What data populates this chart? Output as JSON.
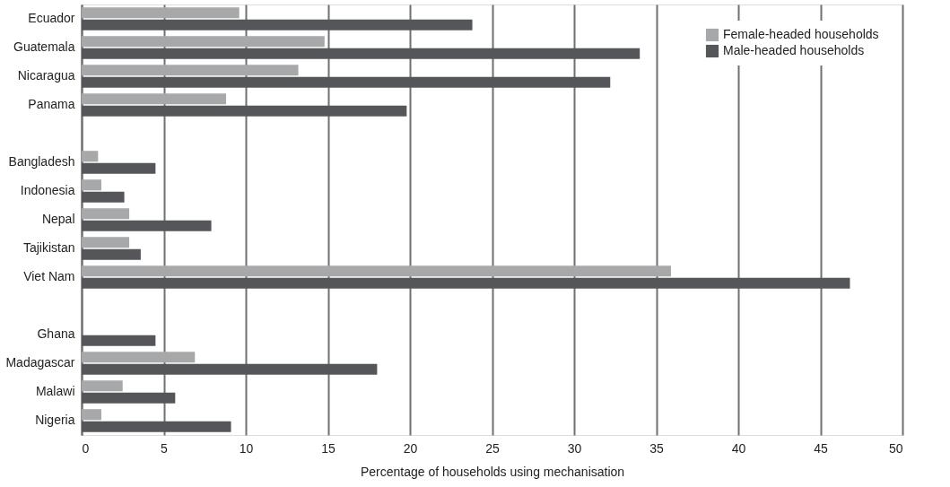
{
  "chart_data": {
    "type": "bar",
    "orientation": "horizontal",
    "xlabel": "Percentage of households using mechanisation",
    "categories": [
      "Ecuador",
      "Guatemala",
      "Nicaragua",
      "Panama",
      null,
      "Bangladesh",
      "Indonesia",
      "Nepal",
      "Tajikistan",
      "Viet Nam",
      null,
      "Ghana",
      "Madagascar",
      "Malawi",
      "Nigeria"
    ],
    "series": [
      {
        "name": "Female-headed households",
        "color": "#a7a8aa",
        "values": [
          9.6,
          14.8,
          13.2,
          8.8,
          null,
          1.0,
          1.2,
          2.9,
          2.9,
          35.9,
          null,
          0,
          6.9,
          2.5,
          1.2
        ]
      },
      {
        "name": "Male-headed households",
        "color": "#55565a",
        "values": [
          23.8,
          34.0,
          32.2,
          19.8,
          null,
          4.5,
          2.6,
          7.9,
          3.6,
          46.8,
          null,
          4.5,
          18.0,
          5.7,
          9.1
        ]
      }
    ],
    "xlim": [
      0,
      50
    ],
    "xticks": [
      0,
      5,
      10,
      15,
      20,
      25,
      30,
      35,
      40,
      45,
      50
    ],
    "grid": "x",
    "legend": "top right"
  }
}
